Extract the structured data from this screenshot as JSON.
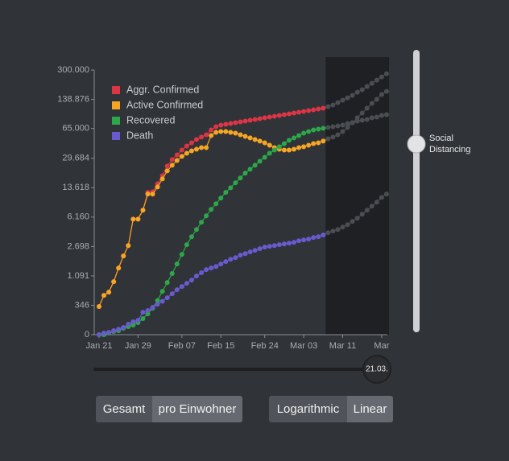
{
  "chart_data": {
    "type": "line",
    "categories": [
      "Jan 21",
      null,
      null,
      null,
      null,
      null,
      null,
      null,
      "Jan 29",
      null,
      null,
      null,
      null,
      null,
      null,
      null,
      null,
      "Feb 07",
      null,
      null,
      null,
      null,
      null,
      null,
      null,
      "Feb 15",
      null,
      null,
      null,
      null,
      null,
      null,
      null,
      null,
      "Feb 24",
      null,
      null,
      null,
      null,
      null,
      null,
      null,
      "Mar 03",
      null,
      null,
      null,
      null,
      null,
      null,
      null,
      "Mar 11",
      null,
      null,
      null,
      null,
      null,
      null,
      null,
      "Mar",
      null
    ],
    "series": [
      {
        "name": "Aggr. Confirmed",
        "color": "#dc3545",
        "values": [
          325,
          538,
          611,
          896,
          1410,
          2040,
          2770,
          5830,
          5830,
          7430,
          12000,
          12200,
          15100,
          18700,
          24200,
          28700,
          32500,
          36900,
          41000,
          44600,
          48600,
          51800,
          55100,
          62600,
          68100,
          71000,
          72500,
          74000,
          75600,
          77200,
          78800,
          80500,
          82200,
          84000,
          86000,
          87600,
          89400,
          91400,
          93300,
          95300,
          97400,
          99400,
          101500,
          103700,
          105900,
          108100,
          110400,
          115200,
          120100,
          127900,
          136200,
          145100,
          154500,
          168000,
          179000,
          194700,
          211600,
          230100,
          250200,
          272100
        ]
      },
      {
        "name": "Active Confirmed",
        "color": "#f5a623",
        "values": [
          325,
          538,
          611,
          896,
          1410,
          2040,
          2770,
          5830,
          5830,
          7430,
          11460,
          11460,
          13900,
          17200,
          21300,
          24700,
          28000,
          31200,
          33900,
          36100,
          37700,
          39300,
          39300,
          53900,
          58700,
          60000,
          60000,
          58700,
          57500,
          55100,
          52800,
          50700,
          48600,
          46600,
          44600,
          41900,
          39300,
          37700,
          36900,
          36900,
          37700,
          39300,
          40200,
          41900,
          43700,
          44600,
          46600,
          49600,
          51800,
          55100,
          60000,
          66700,
          75600,
          86000,
          97400,
          110400,
          125300,
          139200,
          157800,
          171600
        ]
      },
      {
        "name": "Recovered",
        "color": "#2ca84a",
        "values": [
          0,
          0,
          13,
          26,
          33,
          55,
          70,
          86,
          111,
          156,
          217,
          299,
          432,
          631,
          872,
          1180,
          1600,
          2140,
          2840,
          3570,
          4370,
          5340,
          6370,
          7590,
          8840,
          10300,
          12000,
          13600,
          15500,
          17600,
          20000,
          22200,
          24700,
          27500,
          30500,
          33900,
          36900,
          40200,
          43700,
          47600,
          50700,
          53900,
          57500,
          60000,
          62600,
          63900,
          65300,
          66700,
          68100,
          69500,
          71000,
          74000,
          75600,
          78800,
          80500,
          82200,
          86000,
          87600,
          91400,
          93300
        ]
      },
      {
        "name": "Death",
        "color": "#6a5acd",
        "values": [
          0,
          13,
          19,
          33,
          47,
          62,
          94,
          120,
          137,
          239,
          263,
          312,
          364,
          418,
          487,
          574,
          670,
          755,
          847,
          947,
          1090,
          1210,
          1340,
          1410,
          1480,
          1600,
          1720,
          1850,
          1940,
          2090,
          2190,
          2300,
          2410,
          2530,
          2650,
          2710,
          2770,
          2840,
          2900,
          2970,
          3040,
          3180,
          3260,
          3330,
          3490,
          3570,
          3740,
          4000,
          4180,
          4370,
          4680,
          5000,
          5460,
          5970,
          6660,
          7430,
          8280,
          9230,
          10500,
          11460
        ]
      }
    ],
    "yscale": "symlog",
    "ylim": [
      0,
      300000
    ],
    "yticks": [
      0,
      346,
      {
        "value": 1091,
        "label": "1.091"
      },
      {
        "value": 2698,
        "label": "2.698"
      },
      {
        "value": 6160,
        "label": "6.160"
      },
      {
        "value": 13618,
        "label": "13.618"
      },
      {
        "value": 29684,
        "label": "29.684"
      },
      {
        "value": 65000,
        "label": "65.000"
      },
      {
        "value": 138876,
        "label": "138.876"
      },
      {
        "value": 300000,
        "label": "300.000"
      }
    ],
    "forecast_start": 47,
    "forecast_color": "#4a4d52",
    "legend": "upper left"
  },
  "controls": {
    "slider_label": "Social Distancing",
    "date_label": "21.03.",
    "normalization_buttons": [
      "Gesamt",
      "pro Einwohner"
    ],
    "scale_buttons": [
      "Logarithmic",
      "Linear"
    ]
  }
}
